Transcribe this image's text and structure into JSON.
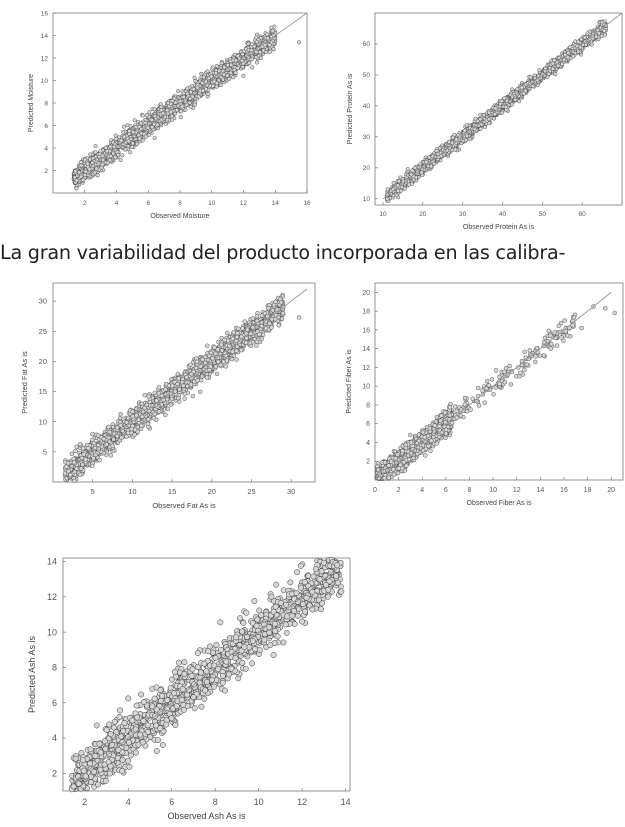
{
  "caption": "La gran variabilidad del producto incorporada en las calibra-",
  "colors": {
    "marker_fill": "#d6d6d6",
    "marker_stroke": "#3a3a3a",
    "line": "#9a9a9a",
    "axis": "#666666"
  },
  "chart_data": [
    {
      "type": "scatter",
      "title": "",
      "xlabel": "Observed Moisture",
      "ylabel": "Predicted Moisture",
      "xlim": [
        0,
        16
      ],
      "ylim": [
        0,
        16
      ],
      "xticks": [
        "2",
        "4",
        "6",
        "8",
        "10",
        "12",
        "14",
        "16"
      ],
      "yticks": [
        "2",
        "4",
        "6",
        "8",
        "10",
        "12",
        "14",
        "16"
      ],
      "reference_line": {
        "x": [
          1.5,
          16
        ],
        "y": [
          1.5,
          16
        ]
      },
      "series": [
        {
          "n_points": 2200,
          "x_range": [
            1.3,
            14.0
          ],
          "residual_sd": 0.45
        }
      ],
      "outliers": [
        [
          12.5,
          12.7
        ],
        [
          13.1,
          12.0
        ],
        [
          13.5,
          14.1
        ],
        [
          12.0,
          11.5
        ],
        [
          15.5,
          13.4
        ],
        [
          11.5,
          10.7
        ]
      ]
    },
    {
      "type": "scatter",
      "title": "",
      "xlabel": "Observed Protein As is",
      "ylabel": "Predicted Protein As is",
      "xlim": [
        8,
        70
      ],
      "ylim": [
        8,
        70
      ],
      "xticks": [
        "10",
        "20",
        "30",
        "40",
        "50",
        "60"
      ],
      "yticks": [
        "10",
        "20",
        "30",
        "40",
        "50",
        "60"
      ],
      "reference_line": {
        "x": [
          10,
          70
        ],
        "y": [
          10,
          70
        ]
      },
      "series": [
        {
          "n_points": 2200,
          "x_range": [
            11,
            66
          ],
          "residual_sd": 1.0
        }
      ],
      "outliers": [
        [
          57,
          59
        ],
        [
          62,
          64
        ],
        [
          65,
          67
        ],
        [
          54,
          53
        ]
      ]
    },
    {
      "type": "scatter",
      "title": "",
      "xlabel": "Observed Fat As is",
      "ylabel": "Predicted Fat As is",
      "xlim": [
        0,
        33
      ],
      "ylim": [
        0,
        33
      ],
      "xticks": [
        "5",
        "10",
        "15",
        "20",
        "25",
        "30"
      ],
      "yticks": [
        "5",
        "10",
        "15",
        "20",
        "25",
        "30"
      ],
      "reference_line": {
        "x": [
          2,
          32
        ],
        "y": [
          2,
          32
        ]
      },
      "series": [
        {
          "n_points": 2400,
          "x_range": [
            1.5,
            29
          ],
          "residual_sd": 1.0
        }
      ],
      "outliers": [
        [
          27,
          27.5
        ],
        [
          28,
          27
        ],
        [
          31,
          27.3
        ],
        [
          26,
          24.5
        ],
        [
          29,
          29
        ]
      ]
    },
    {
      "type": "scatter",
      "title": "",
      "xlabel": "Observed Fiber As is",
      "ylabel": "Predicted Fiber As is",
      "xlim": [
        0,
        21
      ],
      "ylim": [
        0,
        21
      ],
      "xticks": [
        "0",
        "2",
        "4",
        "6",
        "8",
        "10",
        "12",
        "14",
        "16",
        "18",
        "20"
      ],
      "yticks": [
        "2",
        "4",
        "6",
        "8",
        "10",
        "12",
        "14",
        "16",
        "18",
        "20"
      ],
      "reference_line": {
        "x": [
          0,
          20
        ],
        "y": [
          0,
          20
        ]
      },
      "series": [
        {
          "n_points": 1500,
          "x_range": [
            0.2,
            6.5
          ],
          "residual_sd": 0.55
        },
        {
          "n_points": 170,
          "x_range": [
            6.5,
            17
          ],
          "residual_sd": 0.6
        }
      ],
      "outliers": [
        [
          18.5,
          18.5
        ],
        [
          19.5,
          18.3
        ],
        [
          20.3,
          17.8
        ],
        [
          17.5,
          16.2
        ]
      ]
    },
    {
      "type": "scatter",
      "title": "",
      "xlabel": "Observed Ash As is",
      "ylabel": "Predicted Ash As is",
      "xlim": [
        1,
        14.2
      ],
      "ylim": [
        1,
        14.2
      ],
      "xticks": [
        "2",
        "4",
        "6",
        "8",
        "10",
        "12",
        "14"
      ],
      "yticks": [
        "2",
        "4",
        "6",
        "8",
        "10",
        "12",
        "14"
      ],
      "reference_line": {
        "x": [
          1.4,
          13.9
        ],
        "y": [
          1.4,
          13.9
        ]
      },
      "series": [
        {
          "n_points": 1400,
          "x_range": [
            1.4,
            13.8
          ],
          "residual_sd": 0.7
        }
      ],
      "outliers": [
        [
          13.2,
          12.4
        ],
        [
          13.8,
          12.3
        ],
        [
          12.8,
          13.0
        ]
      ]
    }
  ]
}
